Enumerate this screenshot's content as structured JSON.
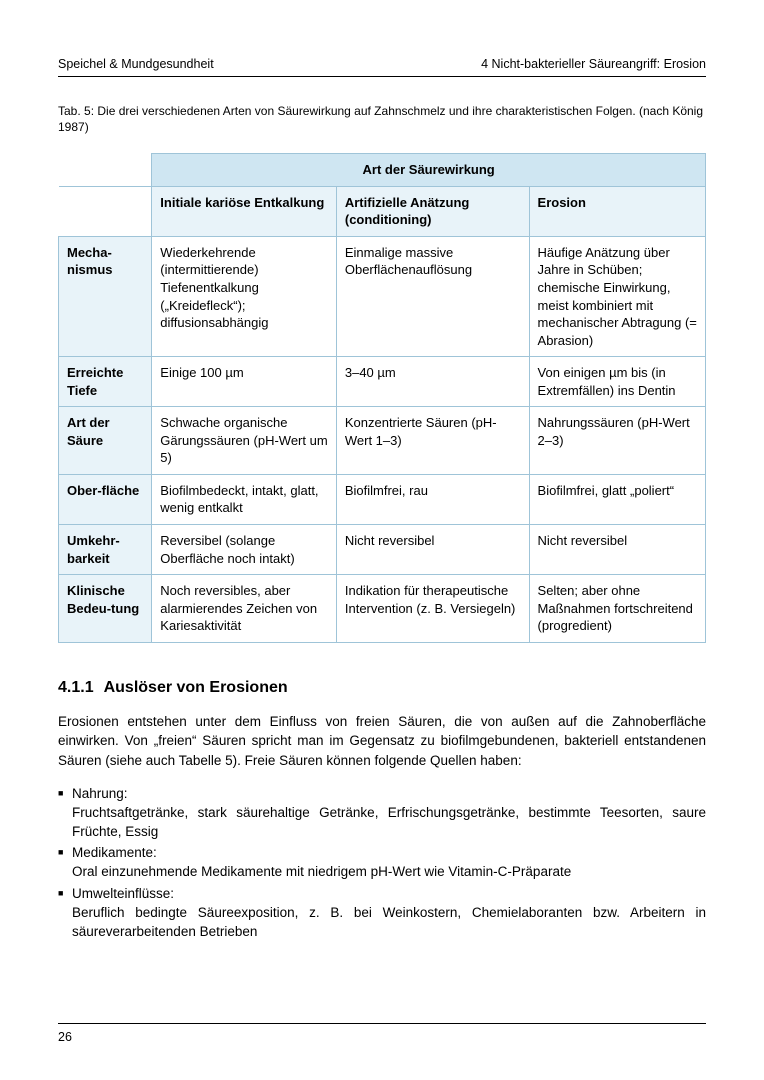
{
  "header": {
    "left": "Speichel & Mundgesundheit",
    "right": "4  Nicht-bakterieller Säureangriff: Erosion"
  },
  "table": {
    "caption": "Tab. 5: Die drei verschiedenen Arten von Säurewirkung auf Zahnschmelz und ihre charakteristischen Folgen. (nach König 1987)",
    "span_header": "Art der Säurewirkung",
    "columns": [
      "Initiale kariöse Entkalkung",
      "Artifizielle Anätzung (conditioning)",
      "Erosion"
    ],
    "rows": [
      {
        "label": "Mecha-nismus",
        "cells": [
          "Wiederkehrende (intermittierende) Tiefenentkalkung („Kreidefleck“); diffusionsabhängig",
          "Einmalige massive Oberflächenauflösung",
          "Häufige Anätzung über Jahre in Schüben; chemische Einwirkung, meist kombiniert mit mechanischer Abtragung (= Abrasion)"
        ]
      },
      {
        "label": "Erreichte Tiefe",
        "cells": [
          "Einige 100 µm",
          "3–40 µm",
          "Von einigen µm bis (in Extremfällen) ins Dentin"
        ]
      },
      {
        "label": "Art der Säure",
        "cells": [
          "Schwache organische Gärungssäuren (pH-Wert um 5)",
          "Konzentrierte Säuren (pH-Wert 1–3)",
          "Nahrungssäuren (pH-Wert 2–3)"
        ]
      },
      {
        "label": "Ober-fläche",
        "cells": [
          "Biofilmbedeckt, intakt, glatt, wenig entkalkt",
          "Biofilmfrei, rau",
          "Biofilmfrei, glatt „poliert“"
        ]
      },
      {
        "label": "Umkehr-barkeit",
        "cells": [
          "Reversibel (solange Oberfläche noch intakt)",
          "Nicht reversibel",
          "Nicht reversibel"
        ]
      },
      {
        "label": "Klinische Bedeu-tung",
        "cells": [
          "Noch reversibles, aber alarmierendes Zeichen von Kariesaktivität",
          "Indikation für therapeutische Intervention (z. B. Versiegeln)",
          "Selten; aber ohne Maßnahmen fortschreitend (progredient)"
        ]
      }
    ],
    "colors": {
      "border": "#9fc4d8",
      "head_bg": "#cfe6f2",
      "subhead_bg": "#e8f3f9"
    }
  },
  "section": {
    "number": "4.1.1",
    "title": "Auslöser von Erosionen",
    "intro": "Erosionen entstehen unter dem Einfluss von freien Säuren, die von außen auf die Zahnoberfläche einwirken. Von „freien“ Säuren spricht man im Gegensatz zu biofilmgebundenen, bakteriell entstandenen Säuren (siehe auch Tabelle 5). Freie Säuren können folgende Quellen haben:",
    "bullets": [
      {
        "label": "Nahrung:",
        "body": "Fruchtsaftgetränke, stark säurehaltige Getränke, Erfrischungsgetränke, bestimmte Teesorten, saure Früchte, Essig"
      },
      {
        "label": "Medikamente:",
        "body": "Oral einzunehmende Medikamente mit niedrigem pH-Wert wie Vitamin-C-Präparate"
      },
      {
        "label": "Umwelteinflüsse:",
        "body": "Beruflich bedingte Säureexposition, z. B. bei Weinkostern, Chemielaboranten bzw. Arbeitern in säureverarbeitenden Betrieben"
      }
    ]
  },
  "page_number": "26"
}
